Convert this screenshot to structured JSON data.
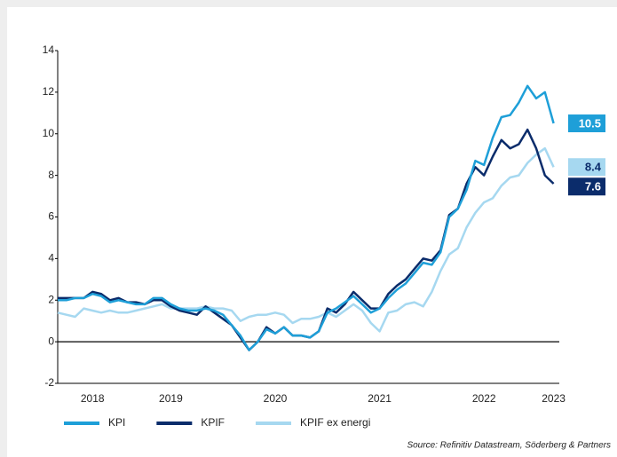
{
  "chart_data": {
    "type": "line",
    "source": "Source: Refinitiv Datastream, Söderberg & Partners",
    "categories": [
      null,
      null,
      null,
      null,
      "2018",
      null,
      null,
      null,
      null,
      null,
      null,
      null,
      null,
      "2019",
      null,
      null,
      null,
      null,
      null,
      null,
      null,
      null,
      null,
      null,
      null,
      "2020",
      null,
      null,
      null,
      null,
      null,
      null,
      null,
      null,
      null,
      null,
      null,
      "2021",
      null,
      null,
      null,
      null,
      null,
      null,
      null,
      null,
      null,
      null,
      null,
      "2022",
      null,
      null,
      null,
      null,
      null,
      null,
      null,
      "2023"
    ],
    "series": [
      {
        "name": "KPI",
        "color": "#1e9fd8",
        "values": [
          2.0,
          2.0,
          2.1,
          2.1,
          2.3,
          2.2,
          1.9,
          2.0,
          1.9,
          1.8,
          1.8,
          2.1,
          2.1,
          1.8,
          1.6,
          1.5,
          1.5,
          1.6,
          1.5,
          1.3,
          0.8,
          0.3,
          -0.4,
          0.0,
          0.6,
          0.4,
          0.7,
          0.3,
          0.3,
          0.2,
          0.5,
          1.4,
          1.6,
          1.9,
          2.2,
          1.8,
          1.4,
          1.6,
          2.1,
          2.5,
          2.8,
          3.3,
          3.8,
          3.7,
          4.3,
          6.0,
          6.4,
          7.3,
          8.7,
          8.5,
          9.8,
          10.8,
          10.9,
          11.5,
          12.3,
          11.7,
          12.0,
          10.5
        ]
      },
      {
        "name": "KPIF",
        "color": "#0b2c6b",
        "values": [
          2.1,
          2.1,
          2.1,
          2.1,
          2.4,
          2.3,
          2.0,
          2.1,
          1.9,
          1.9,
          1.8,
          2.0,
          2.0,
          1.7,
          1.5,
          1.4,
          1.3,
          1.7,
          1.4,
          1.1,
          0.8,
          0.2,
          -0.4,
          0.0,
          0.7,
          0.4,
          0.7,
          0.3,
          0.3,
          0.2,
          0.5,
          1.6,
          1.4,
          1.8,
          2.4,
          2.0,
          1.6,
          1.6,
          2.3,
          2.7,
          3.0,
          3.5,
          4.0,
          3.9,
          4.4,
          6.1,
          6.4,
          7.6,
          8.4,
          8.0,
          8.9,
          9.7,
          9.3,
          9.5,
          10.2,
          9.3,
          8.0,
          7.6
        ]
      },
      {
        "name": "KPIF ex energi",
        "color": "#a6d8f0",
        "values": [
          1.4,
          1.3,
          1.2,
          1.6,
          1.5,
          1.4,
          1.5,
          1.4,
          1.4,
          1.5,
          1.6,
          1.7,
          1.8,
          1.6,
          1.6,
          1.6,
          1.6,
          1.7,
          1.6,
          1.6,
          1.5,
          1.0,
          1.2,
          1.3,
          1.3,
          1.4,
          1.3,
          0.9,
          1.1,
          1.1,
          1.2,
          1.4,
          1.2,
          1.5,
          1.8,
          1.5,
          0.9,
          0.5,
          1.4,
          1.5,
          1.8,
          1.9,
          1.7,
          2.4,
          3.4,
          4.2,
          4.5,
          5.5,
          6.2,
          6.7,
          6.9,
          7.5,
          7.9,
          8.0,
          8.6,
          9.0,
          9.3,
          8.4
        ]
      }
    ],
    "ylim": [
      -2,
      14
    ],
    "yticks": [
      -2,
      0,
      2,
      4,
      6,
      8,
      10,
      12,
      14
    ],
    "grid": false,
    "legend": "bottom"
  }
}
